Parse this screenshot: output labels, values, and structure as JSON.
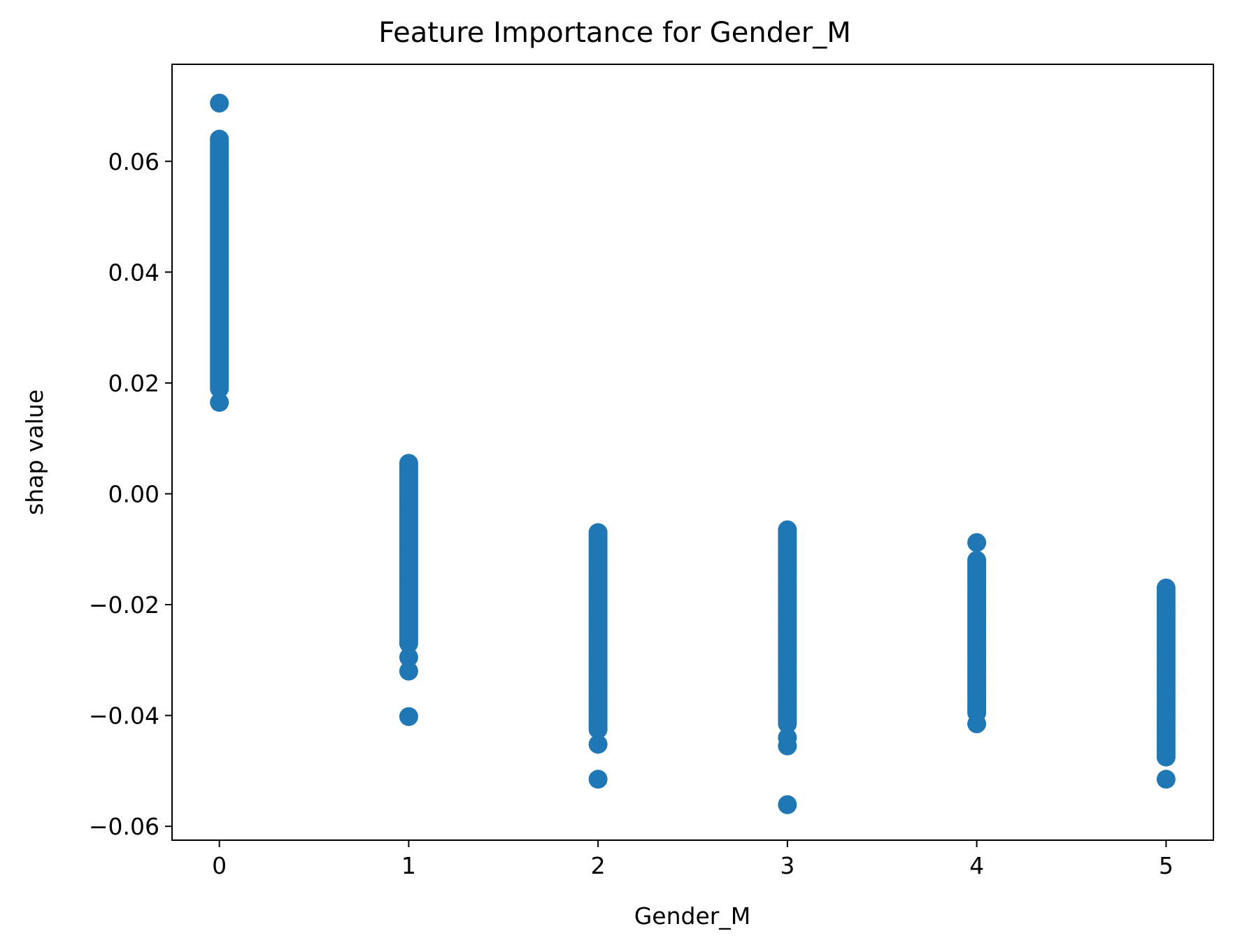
{
  "chart_data": {
    "type": "scatter",
    "title": "Feature Importance for Gender_M",
    "xlabel": "Gender_M",
    "ylabel": "shap value",
    "xlim": [
      -0.25,
      5.25
    ],
    "ylim": [
      -0.0625,
      0.0775
    ],
    "x_ticks": [
      0,
      1,
      2,
      3,
      4,
      5
    ],
    "x_tick_labels": [
      "0",
      "1",
      "2",
      "3",
      "4",
      "5"
    ],
    "y_ticks": [
      -0.06,
      -0.04,
      -0.02,
      0.0,
      0.02,
      0.04,
      0.06
    ],
    "y_tick_labels": [
      "−0.06",
      "−0.04",
      "−0.02",
      "0.00",
      "0.02",
      "0.04",
      "0.06"
    ],
    "grid": false,
    "marker_color": "#1f77b4",
    "series": [
      {
        "groups": [
          {
            "x": 0,
            "range": [
              0.019,
              0.064
            ],
            "outliers": [
              0.0705,
              0.0165
            ]
          },
          {
            "x": 1,
            "range": [
              -0.027,
              0.0055
            ],
            "outliers": [
              -0.0295,
              -0.032,
              -0.0402
            ]
          },
          {
            "x": 2,
            "range": [
              -0.0425,
              -0.007
            ],
            "outliers": [
              -0.0452,
              -0.0515
            ]
          },
          {
            "x": 3,
            "range": [
              -0.0415,
              -0.0065
            ],
            "outliers": [
              -0.0088,
              -0.044,
              -0.0455,
              -0.0561
            ]
          },
          {
            "x": 4,
            "range": [
              -0.0395,
              -0.012
            ],
            "outliers": [
              -0.0088,
              -0.0415
            ]
          },
          {
            "x": 5,
            "range": [
              -0.0475,
              -0.017
            ],
            "outliers": [
              -0.0515
            ]
          }
        ]
      }
    ]
  }
}
